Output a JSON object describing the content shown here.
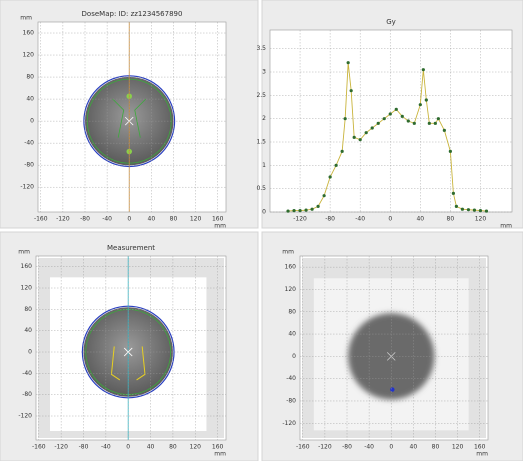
{
  "chart_data": [
    {
      "type": "image",
      "title": "DoseMap: ID: zz1234567890",
      "xlabel": "mm",
      "ylabel": "mm",
      "xlim": [
        -165,
        175
      ],
      "ylim": [
        -165,
        180
      ],
      "xticks": [
        -160,
        -120,
        -80,
        -40,
        0,
        40,
        80,
        120,
        160
      ],
      "yticks": [
        -120,
        -80,
        -40,
        0,
        40,
        80,
        120,
        160
      ],
      "grid": true
    },
    {
      "type": "line",
      "title": "Gy",
      "xlabel": "mm",
      "x": [
        -136,
        -128,
        -120,
        -112,
        -104,
        -96,
        -88,
        -80,
        -72,
        -64,
        -60,
        -56,
        -52,
        -48,
        -40,
        -32,
        -24,
        -16,
        -8,
        0,
        8,
        16,
        24,
        32,
        40,
        44,
        48,
        52,
        60,
        64,
        72,
        80,
        84,
        88,
        96,
        104,
        112,
        120,
        128
      ],
      "series": [
        {
          "color": "#c9b43c",
          "marker_color": "#2e6b2e",
          "values": [
            0.02,
            0.03,
            0.03,
            0.04,
            0.06,
            0.12,
            0.35,
            0.75,
            1.0,
            1.3,
            2.0,
            3.2,
            2.6,
            1.6,
            1.55,
            1.7,
            1.8,
            1.9,
            2.0,
            2.1,
            2.2,
            2.05,
            1.95,
            1.9,
            2.3,
            3.05,
            2.4,
            1.9,
            1.9,
            2.0,
            1.75,
            1.3,
            0.4,
            0.12,
            0.06,
            0.05,
            0.04,
            0.03,
            0.02
          ]
        }
      ],
      "xlim": [
        -160,
        162
      ],
      "ylim": [
        0,
        3.9
      ],
      "xticks": [
        -120,
        -80,
        -40,
        0,
        40,
        80,
        120
      ],
      "yticks": [
        0,
        0.5,
        1,
        1.5,
        2,
        2.5,
        3,
        3.5
      ],
      "grid": true
    },
    {
      "type": "image",
      "title": "Measurement",
      "xlabel": "mm",
      "ylabel": "mm",
      "xlim": [
        -165,
        175
      ],
      "ylim": [
        -165,
        180
      ],
      "xticks": [
        -160,
        -120,
        -80,
        -40,
        0,
        40,
        80,
        120,
        160
      ],
      "yticks": [
        -120,
        -80,
        -40,
        0,
        40,
        80,
        120,
        160
      ],
      "grid": true
    },
    {
      "type": "image",
      "xlabel": "mm",
      "ylabel": "mm",
      "xlim": [
        -165,
        175
      ],
      "ylim": [
        -150,
        180
      ],
      "xticks": [
        -160,
        -120,
        -80,
        -40,
        0,
        40,
        80,
        120,
        160
      ],
      "yticks": [
        -120,
        -80,
        -40,
        0,
        40,
        80,
        120,
        160
      ],
      "grid": true
    }
  ]
}
